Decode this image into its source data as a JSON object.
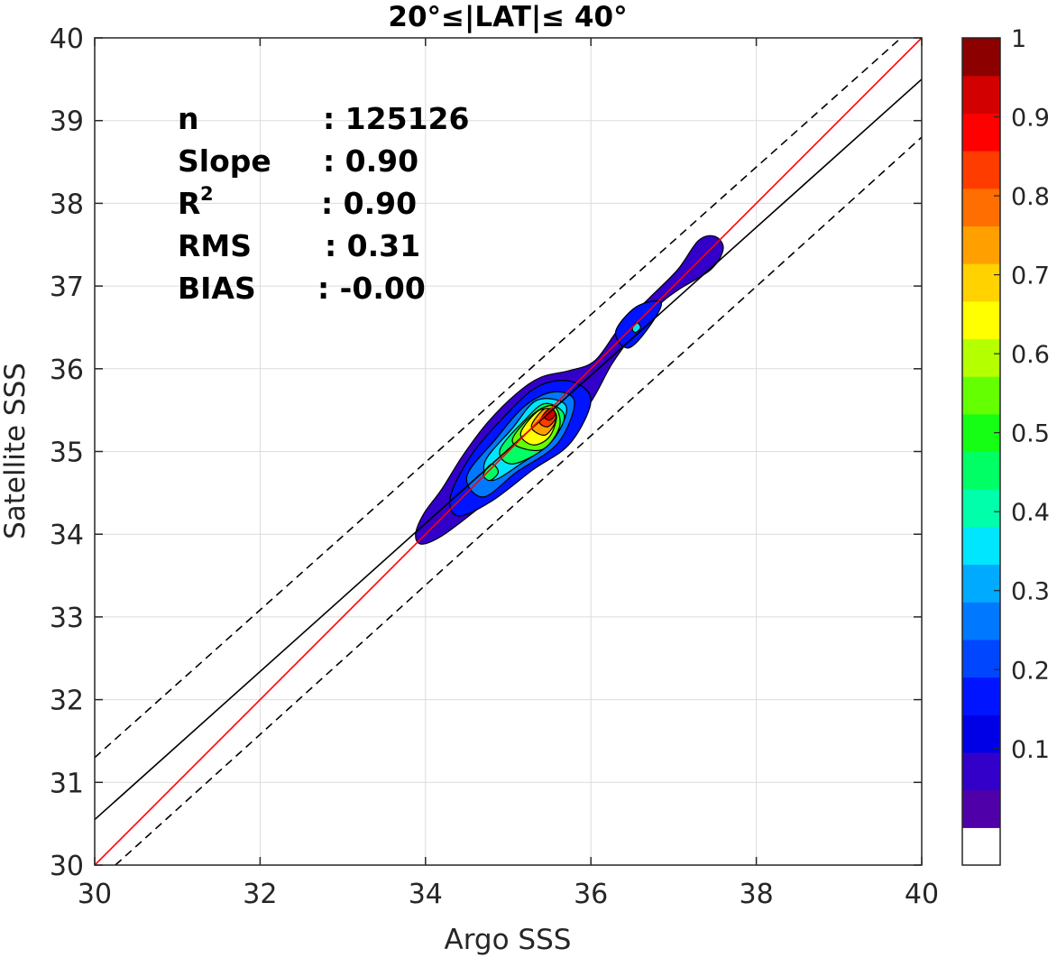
{
  "chart_data": {
    "type": "heatmap",
    "title": "20°≤|LAT|≤ 40°",
    "xlabel": "Argo SSS",
    "ylabel": "Satellite SSS",
    "xlim": [
      30,
      40
    ],
    "ylim": [
      30,
      40
    ],
    "xticks": [
      "30",
      "32",
      "34",
      "36",
      "38",
      "40"
    ],
    "yticks": [
      "30",
      "31",
      "32",
      "33",
      "34",
      "35",
      "36",
      "37",
      "38",
      "39",
      "40"
    ],
    "grid": true,
    "stats": [
      {
        "label": "n",
        "value": ": 125126"
      },
      {
        "label": "Slope",
        "value": ": 0.90"
      },
      {
        "label": "R",
        "sup": "2",
        "value": ": 0.90"
      },
      {
        "label": "RMS",
        "value": ": 0.31"
      },
      {
        "label": "BIAS",
        "value": ": -0.00"
      }
    ],
    "lines": {
      "one_to_one": {
        "x": [
          30,
          40
        ],
        "y": [
          30,
          40
        ],
        "color": "#ff0000"
      },
      "regression": {
        "x": [
          30,
          40
        ],
        "y": [
          30.55,
          39.5
        ],
        "color": "#000000"
      },
      "upper_bound": {
        "x": [
          30,
          39.75
        ],
        "y": [
          31.3,
          40
        ],
        "color": "#000000",
        "style": "dashed"
      },
      "lower_bound": {
        "x": [
          30.25,
          40
        ],
        "y": [
          30,
          38.8
        ],
        "color": "#000000",
        "style": "dashed"
      }
    },
    "density_contours": [
      {
        "level": 0.05,
        "points": [
          [
            33.88,
            34.0
          ],
          [
            33.98,
            34.25
          ],
          [
            34.2,
            34.55
          ],
          [
            34.45,
            34.95
          ],
          [
            34.75,
            35.35
          ],
          [
            35.1,
            35.7
          ],
          [
            35.4,
            35.9
          ],
          [
            35.75,
            35.98
          ],
          [
            36.05,
            36.1
          ],
          [
            36.35,
            36.5
          ],
          [
            36.7,
            36.85
          ],
          [
            37.05,
            37.2
          ],
          [
            37.3,
            37.55
          ],
          [
            37.5,
            37.6
          ],
          [
            37.6,
            37.45
          ],
          [
            37.45,
            37.2
          ],
          [
            37.05,
            36.95
          ],
          [
            36.8,
            36.75
          ],
          [
            36.5,
            36.4
          ],
          [
            36.25,
            36.05
          ],
          [
            36.0,
            35.6
          ],
          [
            35.7,
            35.25
          ],
          [
            35.35,
            34.95
          ],
          [
            35.0,
            34.6
          ],
          [
            34.6,
            34.28
          ],
          [
            34.2,
            33.98
          ],
          [
            33.95,
            33.88
          ]
        ]
      },
      {
        "level": 0.15,
        "points": [
          [
            34.3,
            34.45
          ],
          [
            34.55,
            34.95
          ],
          [
            34.95,
            35.42
          ],
          [
            35.35,
            35.78
          ],
          [
            35.75,
            35.85
          ],
          [
            36.0,
            35.62
          ],
          [
            35.75,
            35.1
          ],
          [
            35.3,
            34.78
          ],
          [
            34.8,
            34.4
          ],
          [
            34.4,
            34.22
          ]
        ]
      },
      {
        "level": 0.15,
        "points": [
          [
            36.3,
            36.45
          ],
          [
            36.55,
            36.75
          ],
          [
            36.85,
            36.8
          ],
          [
            36.7,
            36.5
          ],
          [
            36.45,
            36.25
          ]
        ]
      },
      {
        "level": 0.25,
        "points": [
          [
            34.5,
            34.7
          ],
          [
            34.85,
            35.15
          ],
          [
            35.2,
            35.55
          ],
          [
            35.55,
            35.72
          ],
          [
            35.8,
            35.6
          ],
          [
            35.6,
            35.1
          ],
          [
            35.1,
            34.75
          ],
          [
            34.7,
            34.45
          ]
        ]
      },
      {
        "level": 0.35,
        "points": [
          [
            34.72,
            34.88
          ],
          [
            35.05,
            35.28
          ],
          [
            35.35,
            35.62
          ],
          [
            35.7,
            35.55
          ],
          [
            35.55,
            35.15
          ],
          [
            35.15,
            34.85
          ],
          [
            34.8,
            34.65
          ]
        ]
      },
      {
        "level": 0.45,
        "points": [
          [
            34.9,
            35.02
          ],
          [
            35.2,
            35.38
          ],
          [
            35.45,
            35.58
          ],
          [
            35.68,
            35.42
          ],
          [
            35.45,
            35.05
          ],
          [
            35.05,
            34.85
          ]
        ]
      },
      {
        "level": 0.55,
        "points": [
          [
            35.05,
            35.12
          ],
          [
            35.3,
            35.45
          ],
          [
            35.55,
            35.55
          ],
          [
            35.62,
            35.3
          ],
          [
            35.4,
            35.02
          ]
        ]
      },
      {
        "level": 0.65,
        "points": [
          [
            35.15,
            35.22
          ],
          [
            35.38,
            35.5
          ],
          [
            35.58,
            35.45
          ],
          [
            35.5,
            35.18
          ],
          [
            35.3,
            35.08
          ]
        ]
      },
      {
        "level": 0.75,
        "points": [
          [
            35.28,
            35.3
          ],
          [
            35.45,
            35.52
          ],
          [
            35.58,
            35.4
          ],
          [
            35.45,
            35.2
          ]
        ]
      },
      {
        "level": 0.85,
        "points": [
          [
            35.38,
            35.36
          ],
          [
            35.5,
            35.52
          ],
          [
            35.58,
            35.42
          ],
          [
            35.48,
            35.3
          ]
        ]
      },
      {
        "level": 0.95,
        "points": [
          [
            35.44,
            35.42
          ],
          [
            35.52,
            35.52
          ],
          [
            35.57,
            35.45
          ],
          [
            35.5,
            35.38
          ]
        ]
      },
      {
        "level": 0.45,
        "points": [
          [
            34.7,
            34.72
          ],
          [
            34.8,
            34.85
          ],
          [
            34.88,
            34.75
          ],
          [
            34.78,
            34.65
          ]
        ]
      },
      {
        "level": 0.35,
        "points": [
          [
            36.5,
            36.48
          ],
          [
            36.55,
            36.56
          ],
          [
            36.6,
            36.5
          ],
          [
            36.54,
            36.44
          ]
        ]
      }
    ],
    "colorbar": {
      "ticks": [
        "0.1",
        "0.2",
        "0.3",
        "0.4",
        "0.5",
        "0.6",
        "0.7",
        "0.8",
        "0.9",
        "1"
      ],
      "colors": [
        "#ffffff",
        "#5000a8",
        "#3200c8",
        "#0000e6",
        "#0014ff",
        "#0046ff",
        "#0078ff",
        "#00aaff",
        "#00e6ff",
        "#00ffaa",
        "#00ff64",
        "#14ff14",
        "#64ff00",
        "#b4ff00",
        "#ffff00",
        "#ffd200",
        "#ffa000",
        "#ff6e00",
        "#ff3c00",
        "#ff0000",
        "#d20000",
        "#8c0000"
      ]
    }
  }
}
